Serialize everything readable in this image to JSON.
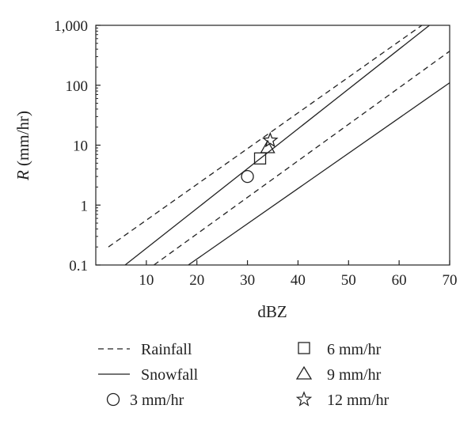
{
  "chart_data": {
    "type": "line",
    "xlabel": "dBZ",
    "ylabel_italic": "R",
    "ylabel_rest": " (mm/hr)",
    "xlim": [
      0,
      70
    ],
    "ylim": [
      0.1,
      1000
    ],
    "yscale": "log",
    "grid": false,
    "legend_position": "bottom",
    "x_ticks": [
      10,
      20,
      30,
      40,
      50,
      60,
      70
    ],
    "x_tick_labels": [
      "10",
      "20",
      "30",
      "40",
      "50",
      "60",
      "70"
    ],
    "y_ticks": [
      0.1,
      1,
      10,
      100,
      1000
    ],
    "y_tick_labels": [
      "0.1",
      "1",
      "10",
      "100",
      "1,000"
    ],
    "series": [
      {
        "name": "Rainfall",
        "style": "dashed",
        "points": [
          [
            2.5,
            0.2
          ],
          [
            64.5,
            1000
          ]
        ]
      },
      {
        "name": "Rainfall",
        "style": "dashed",
        "points": [
          [
            11.5,
            0.1
          ],
          [
            70,
            370
          ]
        ]
      },
      {
        "name": "Snowfall",
        "style": "solid",
        "points": [
          [
            5.8,
            0.1
          ],
          [
            66,
            1000
          ]
        ]
      },
      {
        "name": "Snowfall",
        "style": "solid",
        "points": [
          [
            18.3,
            0.1
          ],
          [
            70,
            110
          ]
        ]
      }
    ],
    "markers": [
      {
        "name": "3 mm/hr",
        "symbol": "circle",
        "x": 30,
        "y": 3
      },
      {
        "name": "6 mm/hr",
        "symbol": "square",
        "x": 32.5,
        "y": 6
      },
      {
        "name": "9 mm/hr",
        "symbol": "triangle",
        "x": 34,
        "y": 9
      },
      {
        "name": "12 mm/hr",
        "symbol": "star",
        "x": 34.5,
        "y": 12
      }
    ]
  },
  "legend": {
    "rainfall": "Rainfall",
    "snowfall": "Snowfall",
    "m3": "3 mm/hr",
    "m6": "6 mm/hr",
    "m9": "9 mm/hr",
    "m12": "12 mm/hr"
  }
}
